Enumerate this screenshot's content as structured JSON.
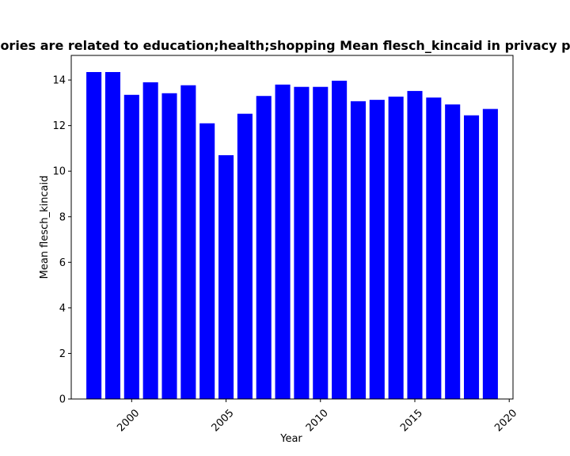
{
  "chart_data": {
    "type": "bar",
    "title": "ories are related to education;health;shopping Mean flesch_kincaid in privacy po",
    "xlabel": "Year",
    "ylabel": "Mean flesch_kincaid",
    "x": [
      1998,
      1999,
      2000,
      2001,
      2002,
      2003,
      2004,
      2005,
      2006,
      2007,
      2008,
      2009,
      2010,
      2011,
      2012,
      2013,
      2014,
      2015,
      2016,
      2017,
      2018,
      2019
    ],
    "values": [
      14.35,
      14.35,
      13.35,
      13.9,
      13.42,
      13.77,
      12.1,
      10.7,
      12.52,
      13.3,
      13.8,
      13.7,
      13.7,
      13.97,
      13.07,
      13.13,
      13.27,
      13.52,
      13.23,
      12.93,
      12.45,
      12.73
    ],
    "xlim": [
      1996.8,
      2020.2
    ],
    "ylim": [
      0,
      15.08
    ],
    "xticks": [
      2000,
      2005,
      2010,
      2015,
      2020
    ],
    "yticks": [
      0,
      2,
      4,
      6,
      8,
      10,
      12,
      14
    ],
    "bar_color": "#0000ff",
    "grid": false,
    "legend": "none"
  }
}
